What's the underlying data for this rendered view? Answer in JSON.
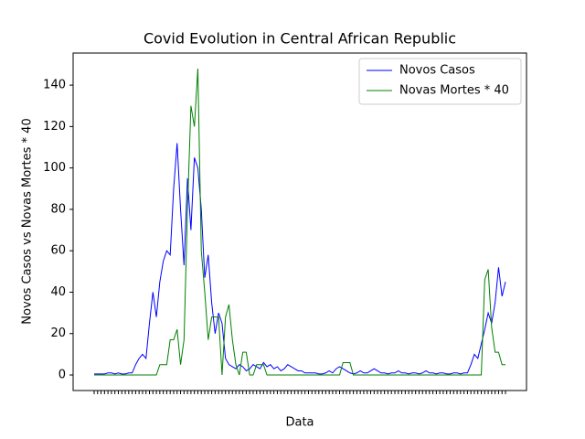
{
  "chart_data": {
    "type": "line",
    "title": "Covid Evolution in Central African Republic",
    "x_label": "Data",
    "y_label": "Novos Casos vs Novas Mortes * 40",
    "categories": [
      null,
      null,
      null,
      null,
      null,
      null,
      null,
      null,
      null,
      null,
      null,
      null,
      null,
      null,
      null,
      null,
      null,
      null,
      null,
      null,
      null,
      null,
      null,
      null,
      null,
      null,
      null,
      null,
      null,
      null,
      null,
      null,
      null,
      null,
      null,
      null,
      null,
      null,
      null,
      null,
      null,
      null,
      null,
      null,
      null,
      null,
      null,
      null,
      null,
      null,
      null,
      null,
      null,
      null,
      null,
      null,
      null,
      null,
      null,
      null,
      null,
      null,
      null,
      null,
      null,
      null,
      null,
      null,
      null,
      null,
      null,
      null,
      null,
      null,
      null,
      null,
      null,
      null,
      null,
      null,
      null,
      null,
      null,
      null,
      null,
      null,
      null,
      null,
      null,
      null,
      null,
      null,
      null,
      null,
      null,
      null,
      null,
      null,
      null,
      null,
      null,
      null,
      null,
      null,
      null,
      null,
      null,
      null,
      null,
      null,
      null,
      null,
      null,
      null,
      null,
      null,
      null,
      null,
      null,
      null
    ],
    "series": [
      {
        "name": "Novos Casos",
        "color": "#0000ff",
        "values": [
          0.5,
          0.5,
          0.5,
          0.5,
          1,
          1,
          0.5,
          1,
          0.5,
          0.5,
          1,
          1,
          5,
          8,
          10,
          8,
          25,
          40,
          28,
          45,
          55,
          60,
          58,
          90,
          112,
          80,
          53,
          95,
          70,
          105,
          100,
          80,
          47,
          58,
          35,
          20,
          30,
          25,
          8,
          5,
          4,
          3,
          5,
          4,
          2,
          3,
          5,
          4,
          3,
          6,
          4,
          5,
          3,
          4,
          2,
          3,
          5,
          4,
          3,
          2,
          2,
          1,
          1,
          1,
          1,
          0.5,
          0.5,
          1,
          2,
          1,
          3,
          4,
          3,
          2,
          1,
          0.5,
          1,
          2,
          1,
          1,
          2,
          3,
          2,
          1,
          1,
          0.5,
          1,
          1,
          2,
          1,
          1,
          0.5,
          1,
          1,
          0.5,
          1,
          2,
          1,
          1,
          0.5,
          1,
          1,
          0.5,
          0.5,
          1,
          1,
          0.5,
          1,
          1,
          5,
          10,
          8,
          15,
          22,
          30,
          25,
          35,
          52,
          38,
          45
        ]
      },
      {
        "name": "Novas Mortes * 40",
        "color": "#008000",
        "values": [
          0,
          0,
          0,
          0,
          0,
          0,
          0,
          0,
          0,
          0,
          0,
          0,
          0,
          0,
          0,
          0,
          0,
          0,
          0,
          5,
          5,
          5,
          17,
          17,
          22,
          5,
          17,
          80,
          130,
          120,
          148,
          60,
          40,
          17,
          28,
          28,
          28,
          0,
          28,
          34,
          17,
          5,
          0,
          11,
          11,
          0,
          0,
          5,
          5,
          5,
          0,
          0,
          0,
          0,
          0,
          0,
          0,
          0,
          0,
          0,
          0,
          0,
          0,
          0,
          0,
          0,
          0,
          0,
          0,
          0,
          0,
          0,
          6,
          6,
          6,
          0,
          0,
          0,
          0,
          0,
          0,
          0,
          0,
          0,
          0,
          0,
          0,
          0,
          0,
          0,
          0,
          0,
          0,
          0,
          0,
          0,
          0,
          0,
          0,
          0,
          0,
          0,
          0,
          0,
          0,
          0,
          0,
          0,
          0,
          0,
          0,
          0,
          0,
          46,
          51,
          23,
          11,
          11,
          5,
          5
        ]
      }
    ],
    "ylim": [
      -7.5,
      155.5
    ],
    "yticks": [
      0,
      20,
      40,
      60,
      80,
      100,
      120,
      140
    ],
    "legend": "upper right"
  }
}
